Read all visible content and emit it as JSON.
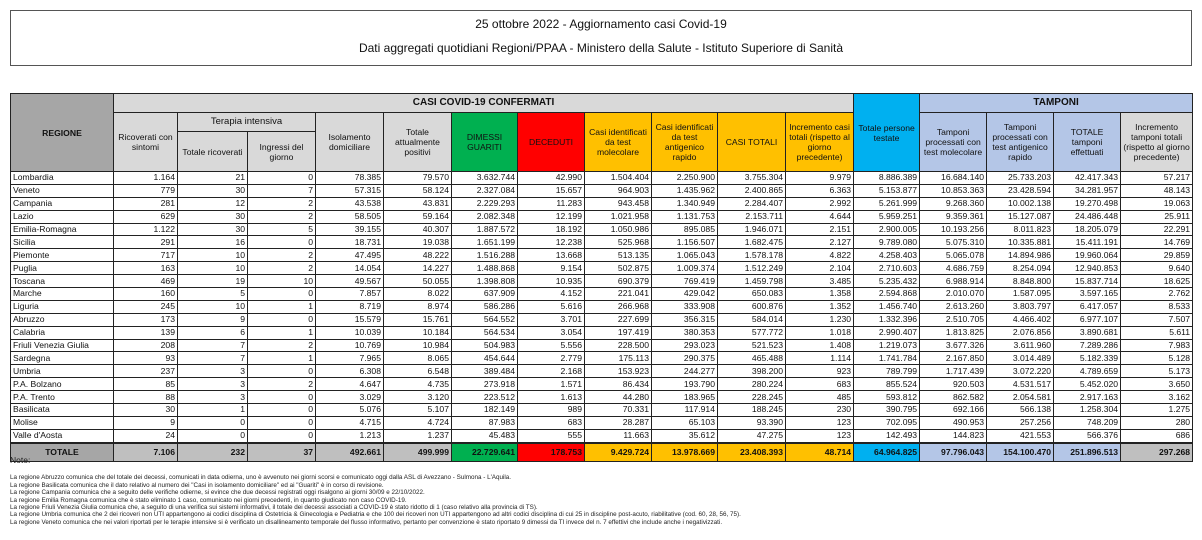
{
  "title": "25 ottobre 2022 - Aggiornamento casi Covid-19",
  "subtitle": "Dati aggregati quotidiani Regioni/PPAA - Ministero della Salute - Istituto Superiore di Sanità",
  "headers": {
    "regione": "REGIONE",
    "casi_confermati": "CASI COVID-19 CONFERMATI",
    "terapia_intensiva": "Terapia intensiva",
    "tamponi": "TAMPONI",
    "cols": [
      "Ricoverati con sintomi",
      "Totale ricoverati",
      "Ingressi del giorno",
      "Isolamento domiciliare",
      "Totale attualmente positivi",
      "DIMESSI GUARITI",
      "DECEDUTI",
      "Casi identificati da test molecolare",
      "Casi identificati da test antigenico rapido",
      "CASI TOTALI",
      "Incremento casi totali (rispetto al giorno precedente)",
      "Totale persone testate",
      "Tamponi processati con test molecolare",
      "Tamponi processati con test antigenico rapido",
      "TOTALE tamponi effettuati",
      "Incremento tamponi totali (rispetto al giorno precedente)"
    ]
  },
  "rows": [
    [
      "Lombardia",
      "1.164",
      "21",
      "0",
      "78.385",
      "79.570",
      "3.632.744",
      "42.990",
      "1.504.404",
      "2.250.900",
      "3.755.304",
      "9.979",
      "8.886.389",
      "16.684.140",
      "25.733.203",
      "42.417.343",
      "57.217"
    ],
    [
      "Veneto",
      "779",
      "30",
      "7",
      "57.315",
      "58.124",
      "2.327.084",
      "15.657",
      "964.903",
      "1.435.962",
      "2.400.865",
      "6.363",
      "5.153.877",
      "10.853.363",
      "23.428.594",
      "34.281.957",
      "48.143"
    ],
    [
      "Campania",
      "281",
      "12",
      "2",
      "43.538",
      "43.831",
      "2.229.293",
      "11.283",
      "943.458",
      "1.340.949",
      "2.284.407",
      "2.992",
      "5.261.999",
      "9.268.360",
      "10.002.138",
      "19.270.498",
      "19.063"
    ],
    [
      "Lazio",
      "629",
      "30",
      "2",
      "58.505",
      "59.164",
      "2.082.348",
      "12.199",
      "1.021.958",
      "1.131.753",
      "2.153.711",
      "4.644",
      "5.959.251",
      "9.359.361",
      "15.127.087",
      "24.486.448",
      "25.911"
    ],
    [
      "Emilia-Romagna",
      "1.122",
      "30",
      "5",
      "39.155",
      "40.307",
      "1.887.572",
      "18.192",
      "1.050.986",
      "895.085",
      "1.946.071",
      "2.151",
      "2.900.005",
      "10.193.256",
      "8.011.823",
      "18.205.079",
      "22.291"
    ],
    [
      "Sicilia",
      "291",
      "16",
      "0",
      "18.731",
      "19.038",
      "1.651.199",
      "12.238",
      "525.968",
      "1.156.507",
      "1.682.475",
      "2.127",
      "9.789.080",
      "5.075.310",
      "10.335.881",
      "15.411.191",
      "14.769"
    ],
    [
      "Piemonte",
      "717",
      "10",
      "2",
      "47.495",
      "48.222",
      "1.516.288",
      "13.668",
      "513.135",
      "1.065.043",
      "1.578.178",
      "4.822",
      "4.258.403",
      "5.065.078",
      "14.894.986",
      "19.960.064",
      "29.859"
    ],
    [
      "Puglia",
      "163",
      "10",
      "2",
      "14.054",
      "14.227",
      "1.488.868",
      "9.154",
      "502.875",
      "1.009.374",
      "1.512.249",
      "2.104",
      "2.710.603",
      "4.686.759",
      "8.254.094",
      "12.940.853",
      "9.640"
    ],
    [
      "Toscana",
      "469",
      "19",
      "10",
      "49.567",
      "50.055",
      "1.398.808",
      "10.935",
      "690.379",
      "769.419",
      "1.459.798",
      "3.485",
      "5.235.432",
      "6.988.914",
      "8.848.800",
      "15.837.714",
      "18.625"
    ],
    [
      "Marche",
      "160",
      "5",
      "0",
      "7.857",
      "8.022",
      "637.909",
      "4.152",
      "221.041",
      "429.042",
      "650.083",
      "1.358",
      "2.594.868",
      "2.010.070",
      "1.587.095",
      "3.597.165",
      "2.762"
    ],
    [
      "Liguria",
      "245",
      "10",
      "1",
      "8.719",
      "8.974",
      "586.286",
      "5.616",
      "266.968",
      "333.908",
      "600.876",
      "1.352",
      "1.456.740",
      "2.613.260",
      "3.803.797",
      "6.417.057",
      "8.533"
    ],
    [
      "Abruzzo",
      "173",
      "9",
      "0",
      "15.579",
      "15.761",
      "564.552",
      "3.701",
      "227.699",
      "356.315",
      "584.014",
      "1.230",
      "1.332.396",
      "2.510.705",
      "4.466.402",
      "6.977.107",
      "7.507"
    ],
    [
      "Calabria",
      "139",
      "6",
      "1",
      "10.039",
      "10.184",
      "564.534",
      "3.054",
      "197.419",
      "380.353",
      "577.772",
      "1.018",
      "2.990.407",
      "1.813.825",
      "2.076.856",
      "3.890.681",
      "5.611"
    ],
    [
      "Friuli Venezia Giulia",
      "208",
      "7",
      "2",
      "10.769",
      "10.984",
      "504.983",
      "5.556",
      "228.500",
      "293.023",
      "521.523",
      "1.408",
      "1.219.073",
      "3.677.326",
      "3.611.960",
      "7.289.286",
      "7.983"
    ],
    [
      "Sardegna",
      "93",
      "7",
      "1",
      "7.965",
      "8.065",
      "454.644",
      "2.779",
      "175.113",
      "290.375",
      "465.488",
      "1.114",
      "1.741.784",
      "2.167.850",
      "3.014.489",
      "5.182.339",
      "5.128"
    ],
    [
      "Umbria",
      "237",
      "3",
      "0",
      "6.308",
      "6.548",
      "389.484",
      "2.168",
      "153.923",
      "244.277",
      "398.200",
      "923",
      "789.799",
      "1.717.439",
      "3.072.220",
      "4.789.659",
      "5.173"
    ],
    [
      "P.A. Bolzano",
      "85",
      "3",
      "2",
      "4.647",
      "4.735",
      "273.918",
      "1.571",
      "86.434",
      "193.790",
      "280.224",
      "683",
      "855.524",
      "920.503",
      "4.531.517",
      "5.452.020",
      "3.650"
    ],
    [
      "P.A. Trento",
      "88",
      "3",
      "0",
      "3.029",
      "3.120",
      "223.512",
      "1.613",
      "44.280",
      "183.965",
      "228.245",
      "485",
      "593.812",
      "862.582",
      "2.054.581",
      "2.917.163",
      "3.162"
    ],
    [
      "Basilicata",
      "30",
      "1",
      "0",
      "5.076",
      "5.107",
      "182.149",
      "989",
      "70.331",
      "117.914",
      "188.245",
      "230",
      "390.795",
      "692.166",
      "566.138",
      "1.258.304",
      "1.275"
    ],
    [
      "Molise",
      "9",
      "0",
      "0",
      "4.715",
      "4.724",
      "87.983",
      "683",
      "28.287",
      "65.103",
      "93.390",
      "123",
      "702.095",
      "490.953",
      "257.256",
      "748.209",
      "280"
    ],
    [
      "Valle d'Aosta",
      "24",
      "0",
      "0",
      "1.213",
      "1.237",
      "45.483",
      "555",
      "11.663",
      "35.612",
      "47.275",
      "123",
      "142.493",
      "144.823",
      "421.553",
      "566.376",
      "686"
    ]
  ],
  "totals": [
    "TOTALE",
    "7.106",
    "232",
    "37",
    "492.661",
    "499.999",
    "22.729.641",
    "178.753",
    "9.429.724",
    "13.978.669",
    "23.408.393",
    "48.714",
    "64.964.825",
    "97.796.043",
    "154.100.470",
    "251.896.513",
    "297.268"
  ],
  "notes_title": "Note:",
  "notes": [
    "La regione Abruzzo comunica che del totale dei decessi, comunicati in data odierna, uno è avvenuto nei giorni scorsi e comunicato oggi dalla ASL di Avezzano - Sulmona - L'Aquila.",
    "La regione Basilicata comunica che il dato relativo al numero dei \"Casi in isolamento domiciliare\" ed ai \"Guariti\" è in corso di revisione.",
    "La regione Campania comunica che a seguito delle verifiche odierne, si evince che due decessi registrati oggi risalgono ai giorni 30/09 e 22/10/2022.",
    "La regione Emilia Romagna comunica che è stato eliminato 1 caso, comunicato nei giorni precedenti, in quanto giudicato non caso COVID-19.",
    "La regione Friuli Venezia Giulia comunica che, a seguito di una verifica sui sistemi informativi, il totale dei decessi associati a COVID-19 è stato ridotto di 1 (caso relativo alla provincia di TS).",
    "La regione Umbria comunica che 2 dei ricoveri non UTI appartengono ai codici disciplina di Ostetricia & Ginecologia e Pediatria e che 100 dei ricoveri non UTI appartengono ad altri codici disciplina di cui 25 in discipline post-acuto, riabilitative (cod. 60, 28, 56, 75).",
    "La regione Veneto comunica che nei valori riportati per le terapie intensive si è verificato un disallineamento temporale del flusso informativo, pertanto per convenzione è stato riportato 9 dimessi da TI  invece del n. 7 effettivi che include anche i negativizzati."
  ]
}
